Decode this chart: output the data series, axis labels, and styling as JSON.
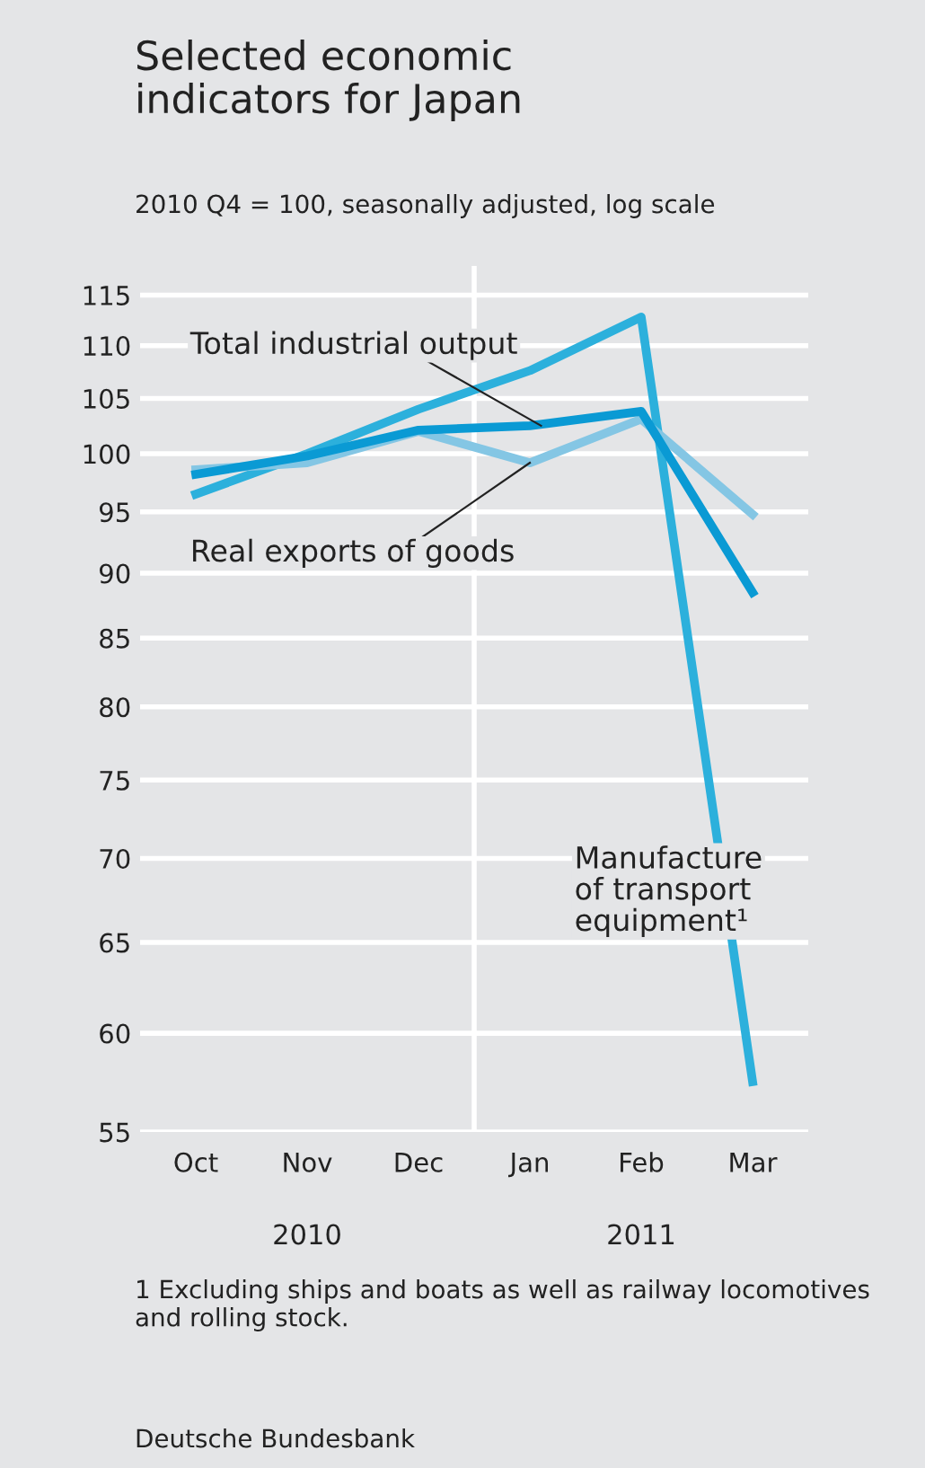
{
  "chart_data": {
    "type": "line",
    "title": "Selected economic\nindicators for Japan",
    "subtitle": "2010 Q4 = 100, seasonally adjusted, log scale",
    "categories": [
      "Oct",
      "Nov",
      "Dec",
      "Jan",
      "Feb",
      "Mar"
    ],
    "series": [
      {
        "name": "Manufacture\nof transport\nequipment¹",
        "color": "#2cb0dc",
        "values": [
          96.5,
          100.0,
          104.0,
          107.6,
          112.8,
          57.5
        ]
      },
      {
        "name": "Real exports of goods",
        "color": "#84c6e4",
        "values": [
          98.6,
          99.2,
          102.0,
          99.2,
          103.1,
          94.8
        ]
      },
      {
        "name": "Total industrial output",
        "color": "#0a9ad4",
        "values": [
          98.2,
          99.8,
          102.1,
          102.5,
          103.8,
          88.5
        ]
      }
    ],
    "log": true,
    "ylim": [
      55,
      118
    ],
    "yticks": [
      55,
      60,
      65,
      70,
      75,
      80,
      85,
      90,
      95,
      100,
      105,
      110,
      115
    ],
    "grid": "y",
    "marker": "none",
    "line_style": "solid",
    "annotations": [
      "2010",
      "2011",
      "1 Excluding ships and boats as well as railway locomotives and rolling stock.",
      "Deutsche Bundesbank"
    ]
  }
}
